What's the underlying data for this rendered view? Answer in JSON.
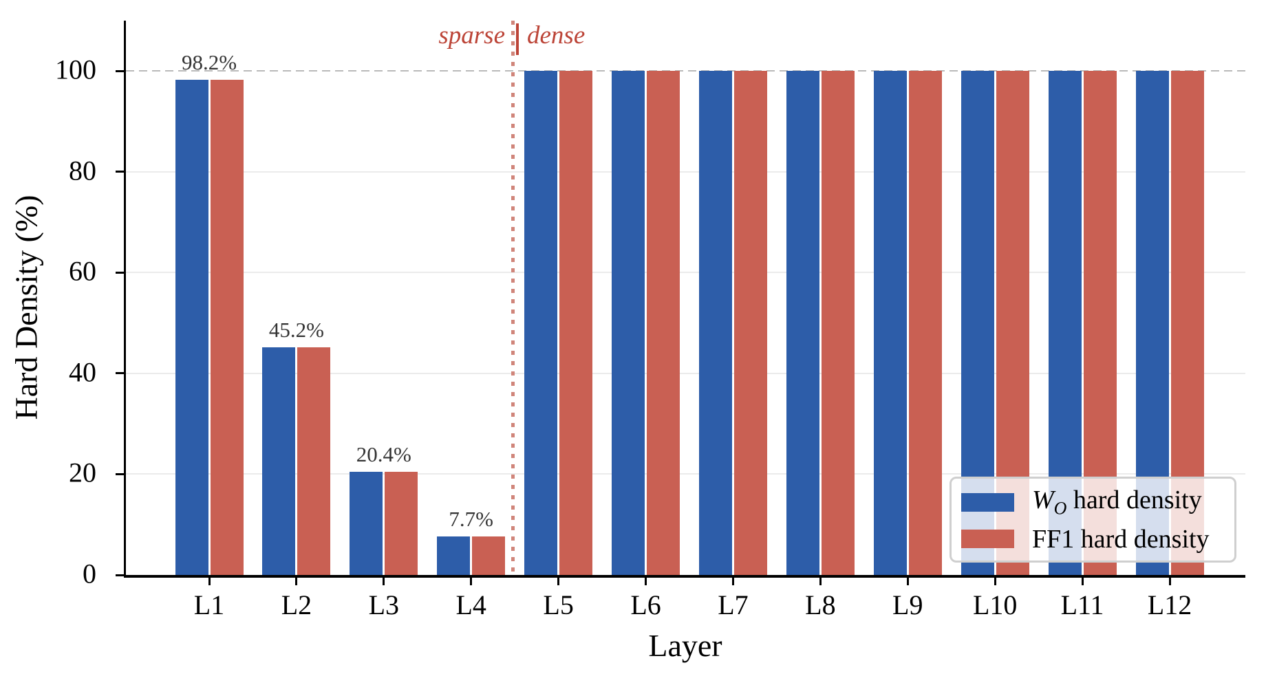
{
  "chart_data": {
    "type": "bar",
    "title": "",
    "xlabel": "Layer",
    "ylabel": "Hard Density (%)",
    "categories": [
      "L1",
      "L2",
      "L3",
      "L4",
      "L5",
      "L6",
      "L7",
      "L8",
      "L9",
      "L10",
      "L11",
      "L12"
    ],
    "series": [
      {
        "name": "W_O hard density",
        "color": "#2d5da9",
        "values": [
          98.2,
          45.2,
          20.4,
          7.7,
          100,
          100,
          100,
          100,
          100,
          100,
          100,
          100
        ]
      },
      {
        "name": "FF1 hard density",
        "color": "#c96053",
        "values": [
          98.2,
          45.2,
          20.4,
          7.7,
          100,
          100,
          100,
          100,
          100,
          100,
          100,
          100
        ]
      }
    ],
    "bar_labels": [
      "98.2%",
      "45.2%",
      "20.4%",
      "7.7%",
      "",
      "",
      "",
      "",
      "",
      "",
      "",
      ""
    ],
    "ylim": [
      0,
      110
    ],
    "yticks": [
      0,
      20,
      40,
      60,
      80,
      100
    ],
    "ytick_labels": [
      "0",
      "20",
      "40",
      "60",
      "80",
      "100"
    ],
    "grid": "horizontal-at-20-40-60-80",
    "gridline_color": "#ebebeb",
    "reference_line": {
      "y": 100,
      "style": "dashed",
      "color": "#b9b9b9"
    },
    "divider": {
      "between_categories": [
        "L4",
        "L5"
      ],
      "style": "dotted",
      "color": "#d0857a",
      "label_left": "sparse",
      "label_right": "dense",
      "label_color": "#bc4437"
    },
    "legend": {
      "position": "lower right",
      "entries": [
        {
          "swatch_color": "#2d5da9",
          "label_italic_prefix": "W",
          "label_subscript": "O",
          "label_rest": " hard density"
        },
        {
          "swatch_color": "#c96053",
          "label_italic_prefix": "",
          "label_subscript": "",
          "label_rest": "FF1 hard density"
        }
      ]
    }
  },
  "annotations": {
    "sparse_label": "sparse",
    "dense_label": "dense"
  },
  "axes": {
    "x_title": "Layer",
    "y_title": "Hard Density (%)"
  }
}
